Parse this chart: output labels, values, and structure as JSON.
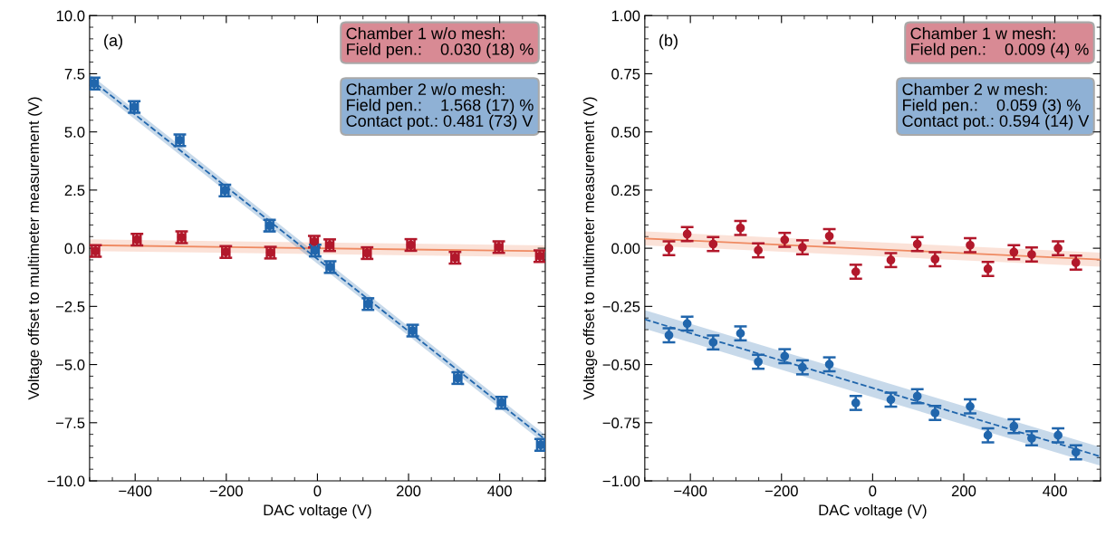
{
  "chart_data": [
    {
      "type": "scatter",
      "xlabel": "DAC voltage (V)",
      "ylabel": "Voltage offset to multimeter measurement (V)",
      "xlim": [
        -500,
        500
      ],
      "ylim": [
        -10,
        10
      ],
      "xticks": [
        -400,
        -200,
        0,
        200,
        400
      ],
      "yticks": [
        {
          "value": -10,
          "label": "−10.0"
        },
        {
          "value": -7.5,
          "label": "−7.5"
        },
        {
          "value": -5,
          "label": "−5.0"
        },
        {
          "value": -2.5,
          "label": "−2.5"
        },
        {
          "value": 0,
          "label": "0.0"
        },
        2.5,
        {
          "value": 5,
          "label": "5.0"
        },
        7.5,
        {
          "value": 10,
          "label": "10.0"
        }
      ],
      "marker": "circle",
      "annotations": [
        "(a)",
        "Chamber 1 w/o mesh:\nField pen.:    0.030 (18) %",
        "Chamber 2 w/o mesh:\nField pen.:    1.568 (17) %\nContact pot.: 0.481 (73) V"
      ],
      "series": [
        {
          "color": "#b2182b",
          "x": [
            -487,
            -396,
            -298,
            -201,
            -103,
            -7,
            27,
            109,
            205,
            302,
            398,
            488
          ],
          "values": [
            -0.12,
            0.37,
            0.47,
            -0.16,
            -0.19,
            0.28,
            0.13,
            -0.21,
            0.14,
            -0.41,
            0.05,
            -0.34
          ],
          "errors": [
            0.25,
            0.25,
            0.25,
            0.25,
            0.25,
            0.25,
            0.25,
            0.25,
            0.25,
            0.25,
            0.25,
            0.25
          ],
          "xerrors": [
            8,
            8,
            8,
            8,
            8,
            8,
            8,
            8,
            8,
            8,
            8,
            8
          ]
        },
        {
          "color": "#2166ac",
          "x": [
            -490,
            -402,
            -302,
            -203,
            -105,
            -5,
            28,
            111,
            209,
            308,
            404,
            490
          ],
          "values": [
            7.08,
            6.07,
            4.64,
            2.48,
            0.97,
            -0.1,
            -0.81,
            -2.4,
            -3.54,
            -5.58,
            -6.64,
            -8.45
          ],
          "errors": [
            0.25,
            0.25,
            0.25,
            0.25,
            0.25,
            0.25,
            0.25,
            0.25,
            0.25,
            0.25,
            0.25,
            0.25
          ],
          "xerrors": [
            8,
            8,
            8,
            8,
            8,
            8,
            8,
            8,
            8,
            8,
            8,
            8
          ]
        },
        {
          "type": "line",
          "color": "#ef8a62",
          "line_style": "solid",
          "marker": "none",
          "x": [
            -500,
            500
          ],
          "values": [
            0.13,
            -0.13
          ],
          "lower": [
            -0.12,
            -0.38
          ],
          "upper": [
            0.38,
            0.12
          ]
        },
        {
          "type": "line",
          "color": "#2166ac",
          "line_style": "dashed",
          "marker": "none",
          "x": [
            -500,
            500
          ],
          "values": [
            7.29,
            -8.22
          ],
          "lower": [
            7.09,
            -8.42
          ],
          "upper": [
            7.49,
            -8.02
          ]
        }
      ]
    },
    {
      "type": "scatter",
      "xlabel": "DAC voltage (V)",
      "ylabel": "Voltage offset to multimeter measurement (V)",
      "xlim": [
        -500,
        500
      ],
      "ylim": [
        -1,
        1
      ],
      "xticks": [
        -400,
        -200,
        0,
        200,
        400
      ],
      "yticks": [
        {
          "value": -1,
          "label": "−1.00"
        },
        {
          "value": -0.75,
          "label": "−0.75"
        },
        {
          "value": -0.5,
          "label": "−0.50"
        },
        {
          "value": -0.25,
          "label": "−0.25"
        },
        {
          "value": 0,
          "label": "0.00"
        },
        0.25,
        {
          "value": 0.5,
          "label": "0.50"
        },
        0.75,
        {
          "value": 1,
          "label": "1.00"
        }
      ],
      "marker": "circle",
      "annotations": [
        "(b)",
        "Chamber 1 w mesh:\nField pen.:    0.009 (4) %",
        "Chamber 2 w mesh:\nField pen.:    0.059 (3) %\nContact pot.: 0.594 (14) V"
      ],
      "series": [
        {
          "color": "#b2182b",
          "x": [
            -447,
            -407,
            -350,
            -290,
            -251,
            -193,
            -154,
            -95,
            -37,
            40,
            98,
            137,
            214,
            253,
            310,
            349,
            407,
            446
          ],
          "values": [
            0.0,
            0.061,
            0.018,
            0.087,
            -0.009,
            0.036,
            0.004,
            0.052,
            -0.101,
            -0.051,
            0.018,
            -0.047,
            0.013,
            -0.089,
            -0.017,
            -0.027,
            0.0,
            -0.062
          ],
          "errors": [
            0.03,
            0.03,
            0.03,
            0.03,
            0.03,
            0.03,
            0.03,
            0.03,
            0.03,
            0.03,
            0.03,
            0.03,
            0.03,
            0.03,
            0.03,
            0.03,
            0.03,
            0.03
          ]
        },
        {
          "color": "#2166ac",
          "x": [
            -447,
            -407,
            -350,
            -290,
            -251,
            -193,
            -154,
            -95,
            -37,
            40,
            98,
            137,
            214,
            253,
            310,
            349,
            407,
            446
          ],
          "values": [
            -0.374,
            -0.324,
            -0.405,
            -0.366,
            -0.488,
            -0.464,
            -0.512,
            -0.499,
            -0.665,
            -0.651,
            -0.636,
            -0.708,
            -0.68,
            -0.804,
            -0.765,
            -0.817,
            -0.804,
            -0.877
          ],
          "errors": [
            0.03,
            0.03,
            0.03,
            0.03,
            0.03,
            0.03,
            0.03,
            0.03,
            0.03,
            0.03,
            0.03,
            0.03,
            0.03,
            0.03,
            0.03,
            0.03,
            0.03,
            0.03
          ]
        },
        {
          "type": "line",
          "color": "#ef8a62",
          "line_style": "solid",
          "marker": "none",
          "x": [
            -500,
            500
          ],
          "values": [
            0.042,
            -0.049
          ],
          "lower": [
            0.012,
            -0.079
          ],
          "upper": [
            0.072,
            -0.019
          ]
        },
        {
          "type": "line",
          "color": "#2166ac",
          "line_style": "dashed",
          "marker": "none",
          "x": [
            -500,
            500
          ],
          "values": [
            -0.306,
            -0.895
          ],
          "lower": [
            -0.346,
            -0.935
          ],
          "upper": [
            -0.266,
            -0.855
          ]
        }
      ]
    }
  ]
}
